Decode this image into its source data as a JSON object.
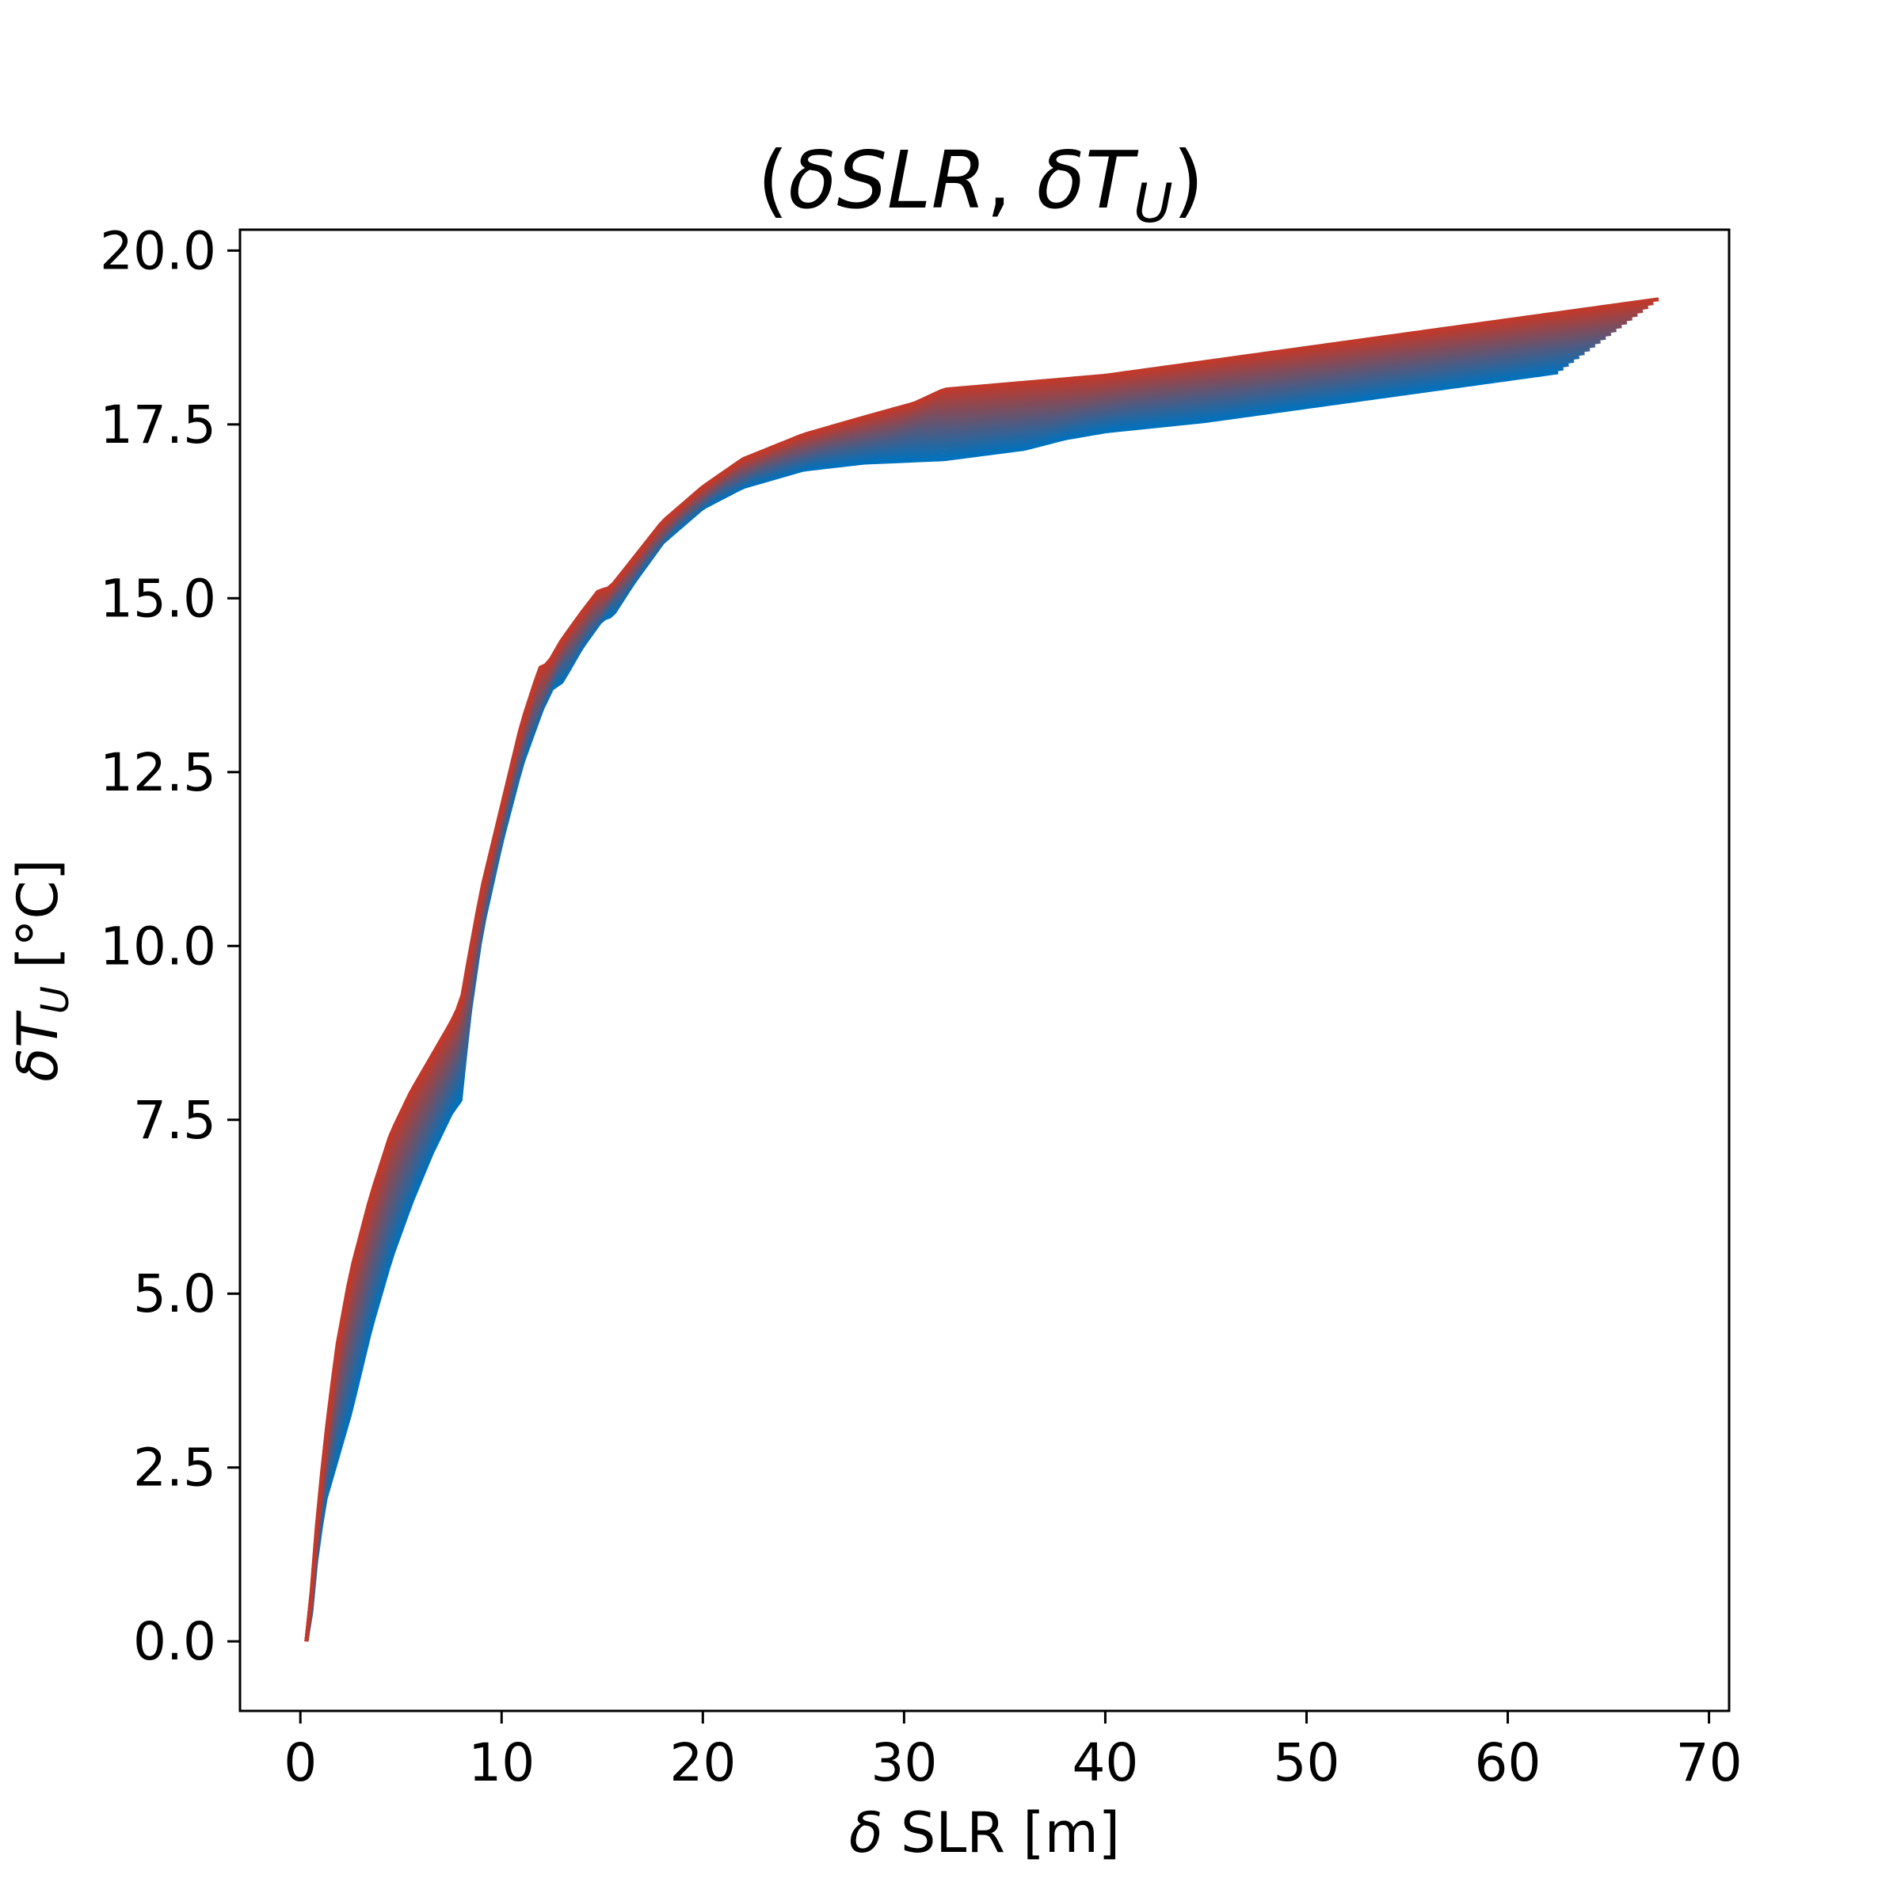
{
  "chart_data": {
    "type": "line",
    "title_open": "(",
    "title_delta": "δ",
    "title_var1": "SLR",
    "title_comma": ", ",
    "title_var2": "T",
    "title_sub": "U",
    "title_close": ")",
    "xlabel_delta": "δ",
    "xlabel_text": " SLR [m]",
    "ylabel_delta": "δ",
    "ylabel_var": "T",
    "ylabel_sub": "U",
    "ylabel_unit": " [°C]",
    "xlim": [
      -3,
      71
    ],
    "ylim": [
      -1,
      20.3
    ],
    "xticks": [
      0,
      10,
      20,
      30,
      40,
      50,
      60,
      70
    ],
    "xtick_labels": [
      "0",
      "10",
      "20",
      "30",
      "40",
      "50",
      "60",
      "70"
    ],
    "yticks": [
      0,
      2.5,
      5,
      7.5,
      10,
      12.5,
      15,
      17.5,
      20
    ],
    "ytick_labels": [
      "0.0",
      "2.5",
      "5.0",
      "7.5",
      "10.0",
      "12.5",
      "15.0",
      "17.5",
      "20.0"
    ],
    "grid": false,
    "legend": "none",
    "series_count": 20,
    "color_start": "#0072BD",
    "color_end": "#C0392B",
    "series_blue": {
      "x": [
        0.3,
        0.5,
        0.8,
        1.2,
        1.8,
        2.5,
        3.5,
        4.5,
        5.5,
        6.5,
        7.5,
        8.0,
        8.3,
        9.0,
        10.0,
        11.0,
        12.0,
        12.5,
        13.0,
        14.0,
        15.0,
        15.5,
        16.5,
        18.0,
        20.0,
        22.0,
        25.0,
        28.0,
        32.0,
        36.0,
        38.0,
        40.0,
        45.0,
        50.0,
        55.0,
        60.0,
        62.5
      ],
      "y": [
        0.0,
        0.3,
        1.2,
        2.0,
        2.6,
        3.3,
        4.5,
        5.5,
        6.3,
        7.0,
        7.6,
        7.8,
        8.8,
        10.2,
        11.5,
        12.6,
        13.4,
        13.7,
        13.8,
        14.3,
        14.7,
        14.75,
        15.2,
        15.8,
        16.3,
        16.6,
        16.85,
        16.95,
        17.0,
        17.15,
        17.3,
        17.4,
        17.55,
        17.75,
        17.95,
        18.15,
        18.25
      ]
    },
    "series_red": {
      "x": [
        0.3,
        0.5,
        0.8,
        1.2,
        1.8,
        2.5,
        3.5,
        4.5,
        5.5,
        6.5,
        7.5,
        8.0,
        8.3,
        9.0,
        10.0,
        11.0,
        11.9,
        12.3,
        13.0,
        14.0,
        14.8,
        15.4,
        16.5,
        18.0,
        20.0,
        22.0,
        25.0,
        28.0,
        30.5,
        32.0,
        36.0,
        40.0,
        45.0,
        50.0,
        55.0,
        60.0,
        65.0,
        67.5
      ],
      "y": [
        0.0,
        0.5,
        1.6,
        2.8,
        4.2,
        5.3,
        6.4,
        7.3,
        7.9,
        8.4,
        8.9,
        9.2,
        9.7,
        10.8,
        12.0,
        13.2,
        14.0,
        14.05,
        14.4,
        14.8,
        15.1,
        15.15,
        15.55,
        16.1,
        16.6,
        17.0,
        17.35,
        17.6,
        17.8,
        18.0,
        18.1,
        18.2,
        18.4,
        18.6,
        18.8,
        19.0,
        19.2,
        19.3
      ]
    }
  }
}
